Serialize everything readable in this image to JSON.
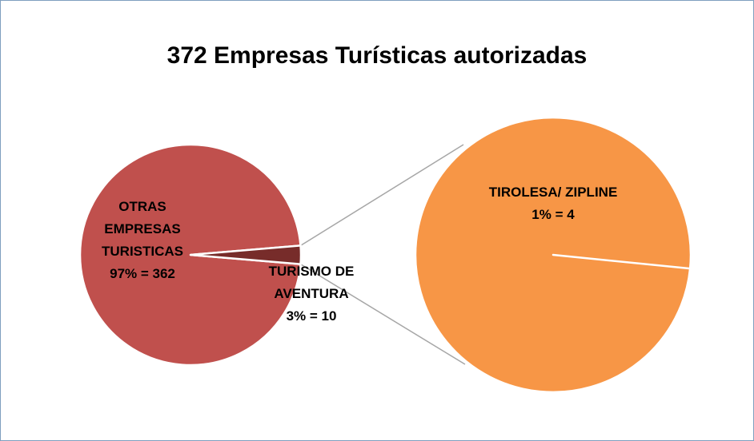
{
  "chart_data": {
    "type": "pie_of_pie",
    "title": "372 Empresas Turísticas autorizadas",
    "categories": [
      "OTRAS EMPRESAS TURISTICAS",
      "TURISMO DE AVENTURA"
    ],
    "values": [
      362,
      10
    ],
    "value_labels": [
      "97% = 362",
      "3% = 10"
    ],
    "colors": [
      "#c0504d",
      "#772c2a"
    ],
    "secondary": {
      "categories": [
        "TIROLESA/ ZIPLINE"
      ],
      "values": [
        4
      ],
      "value_labels": [
        "1% = 4"
      ],
      "colors": [
        "#f79646"
      ]
    }
  }
}
